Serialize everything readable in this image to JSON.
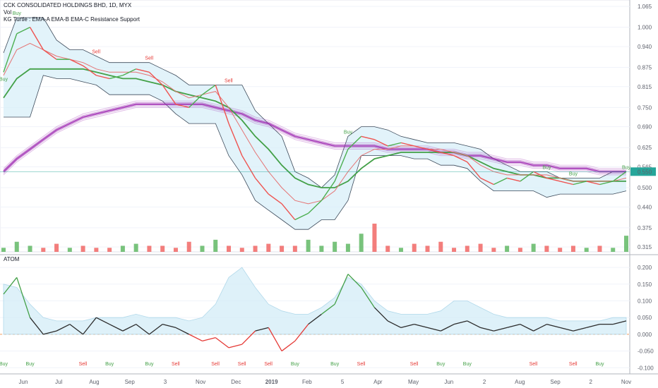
{
  "header": {
    "title": "CCK CONSOLIDATED HOLDINGS BHD, 1D, MYX",
    "vol_label": "Vol",
    "indicator": "KG Turtle : EMA-A EMA-B EMA-C Resistance Support"
  },
  "sub": {
    "label": "ATOM"
  },
  "colors": {
    "up": "#4caf50",
    "down": "#ef5350",
    "emaFast": "#e57373",
    "emaMid": "#43a047",
    "emaSlow": "#9c27b0",
    "channel": "#3c4a5a",
    "channelFill": "#d6eef8",
    "price": "#26a69a",
    "atomUp": "#43a047",
    "atomDown": "#e53935",
    "atomNeutral": "#2b2b2b"
  },
  "chart_data": [
    {
      "type": "line",
      "title": "CCK CONSOLIDATED HOLDINGS BHD, 1D, MYX",
      "y_ticks": [
        "1.065",
        "1.000",
        "0.940",
        "0.875",
        "0.815",
        "0.750",
        "0.690",
        "0.625",
        "0.565",
        "0.500",
        "0.440",
        "0.375",
        "0.315"
      ],
      "ylim": [
        0.3,
        1.085
      ],
      "last_price": "0.550",
      "x_labels": [
        "Jun",
        "Jul",
        "Aug",
        "Sep",
        "3",
        "Nov",
        "Dec",
        "2019",
        "Feb",
        "5",
        "Apr",
        "May",
        "Jun",
        "2",
        "Aug",
        "Sep",
        "2",
        "Nov"
      ],
      "close": [
        0.86,
        0.98,
        1.0,
        0.93,
        0.9,
        0.9,
        0.88,
        0.85,
        0.84,
        0.85,
        0.87,
        0.86,
        0.82,
        0.76,
        0.75,
        0.79,
        0.82,
        0.7,
        0.6,
        0.53,
        0.48,
        0.45,
        0.4,
        0.42,
        0.46,
        0.52,
        0.62,
        0.66,
        0.65,
        0.63,
        0.64,
        0.63,
        0.62,
        0.61,
        0.6,
        0.58,
        0.53,
        0.51,
        0.53,
        0.52,
        0.55,
        0.53,
        0.52,
        0.51,
        0.52,
        0.51,
        0.52,
        0.55
      ],
      "ema_fast": [
        0.85,
        0.93,
        0.95,
        0.93,
        0.91,
        0.9,
        0.89,
        0.87,
        0.86,
        0.86,
        0.86,
        0.85,
        0.83,
        0.8,
        0.78,
        0.79,
        0.8,
        0.75,
        0.68,
        0.61,
        0.55,
        0.5,
        0.46,
        0.45,
        0.46,
        0.49,
        0.55,
        0.6,
        0.62,
        0.62,
        0.63,
        0.63,
        0.62,
        0.62,
        0.61,
        0.6,
        0.57,
        0.55,
        0.54,
        0.54,
        0.54,
        0.54,
        0.53,
        0.52,
        0.52,
        0.52,
        0.52,
        0.53
      ],
      "ema_mid": [
        0.78,
        0.84,
        0.87,
        0.87,
        0.87,
        0.87,
        0.87,
        0.86,
        0.85,
        0.84,
        0.84,
        0.83,
        0.82,
        0.8,
        0.79,
        0.78,
        0.77,
        0.75,
        0.71,
        0.66,
        0.62,
        0.57,
        0.53,
        0.51,
        0.5,
        0.5,
        0.52,
        0.56,
        0.59,
        0.6,
        0.61,
        0.61,
        0.61,
        0.61,
        0.61,
        0.6,
        0.58,
        0.56,
        0.55,
        0.54,
        0.54,
        0.53,
        0.53,
        0.52,
        0.52,
        0.52,
        0.52,
        0.52
      ],
      "ema_slow": [
        0.55,
        0.59,
        0.62,
        0.65,
        0.68,
        0.7,
        0.72,
        0.73,
        0.74,
        0.75,
        0.76,
        0.76,
        0.76,
        0.76,
        0.76,
        0.76,
        0.75,
        0.74,
        0.73,
        0.71,
        0.7,
        0.68,
        0.66,
        0.65,
        0.64,
        0.63,
        0.63,
        0.63,
        0.63,
        0.62,
        0.62,
        0.62,
        0.62,
        0.61,
        0.61,
        0.6,
        0.6,
        0.59,
        0.58,
        0.58,
        0.57,
        0.57,
        0.56,
        0.56,
        0.56,
        0.55,
        0.55,
        0.55
      ],
      "upper": [
        0.92,
        1.03,
        1.03,
        1.03,
        0.96,
        0.93,
        0.93,
        0.91,
        0.89,
        0.89,
        0.89,
        0.89,
        0.87,
        0.85,
        0.82,
        0.82,
        0.82,
        0.82,
        0.82,
        0.74,
        0.7,
        0.66,
        0.55,
        0.53,
        0.5,
        0.54,
        0.66,
        0.69,
        0.69,
        0.68,
        0.66,
        0.65,
        0.64,
        0.64,
        0.64,
        0.63,
        0.62,
        0.59,
        0.57,
        0.55,
        0.55,
        0.55,
        0.53,
        0.53,
        0.53,
        0.53,
        0.55,
        0.55
      ],
      "lower": [
        0.72,
        0.72,
        0.72,
        0.85,
        0.84,
        0.84,
        0.83,
        0.82,
        0.79,
        0.79,
        0.79,
        0.79,
        0.77,
        0.73,
        0.7,
        0.7,
        0.7,
        0.6,
        0.54,
        0.46,
        0.43,
        0.4,
        0.37,
        0.37,
        0.4,
        0.4,
        0.46,
        0.6,
        0.6,
        0.6,
        0.6,
        0.59,
        0.59,
        0.57,
        0.57,
        0.56,
        0.52,
        0.49,
        0.49,
        0.49,
        0.49,
        0.47,
        0.48,
        0.48,
        0.48,
        0.48,
        0.48,
        0.49
      ],
      "volume": [
        2,
        5,
        3,
        2,
        4,
        2,
        3,
        2,
        2,
        3,
        4,
        3,
        3,
        2,
        5,
        3,
        6,
        3,
        2,
        3,
        4,
        3,
        3,
        6,
        3,
        5,
        4,
        9,
        14,
        3,
        2,
        4,
        3,
        5,
        2,
        3,
        4,
        2,
        3,
        2,
        4,
        3,
        2,
        3,
        2,
        3,
        2,
        8
      ],
      "signals": [
        {
          "i": 0,
          "label": "Buy",
          "pos": "low"
        },
        {
          "i": 1,
          "label": "Buy",
          "pos": "high"
        },
        {
          "i": 7,
          "label": "Sell",
          "pos": "high"
        },
        {
          "i": 11,
          "label": "Sell",
          "pos": "high"
        },
        {
          "i": 17,
          "label": "Sell",
          "pos": "high"
        },
        {
          "i": 26,
          "label": "Buy",
          "pos": "high"
        },
        {
          "i": 41,
          "label": "Buy",
          "pos": "high"
        },
        {
          "i": 43,
          "label": "Buy",
          "pos": "high"
        },
        {
          "i": 47,
          "label": "Buy",
          "pos": "high"
        }
      ]
    },
    {
      "type": "area",
      "title": "ATOM",
      "y_ticks": [
        "0.200",
        "0.150",
        "0.100",
        "0.050",
        "0.000",
        "-0.050",
        "-0.100"
      ],
      "ylim": [
        -0.11,
        0.215
      ],
      "atom": [
        0.12,
        0.17,
        0.05,
        0.0,
        0.01,
        0.03,
        0.0,
        0.05,
        0.03,
        0.01,
        0.03,
        0.0,
        0.03,
        0.02,
        0.0,
        -0.02,
        -0.01,
        -0.04,
        -0.03,
        0.01,
        0.02,
        -0.05,
        -0.02,
        0.03,
        0.06,
        0.09,
        0.18,
        0.14,
        0.08,
        0.04,
        0.02,
        0.03,
        0.02,
        0.01,
        0.03,
        0.04,
        0.02,
        0.01,
        0.02,
        0.03,
        0.01,
        0.03,
        0.02,
        0.01,
        0.02,
        0.03,
        0.03,
        0.04
      ],
      "envelope": [
        0.15,
        0.14,
        0.09,
        0.05,
        0.04,
        0.04,
        0.04,
        0.05,
        0.05,
        0.05,
        0.06,
        0.05,
        0.05,
        0.05,
        0.04,
        0.05,
        0.09,
        0.17,
        0.2,
        0.14,
        0.09,
        0.07,
        0.06,
        0.06,
        0.08,
        0.11,
        0.17,
        0.15,
        0.1,
        0.07,
        0.06,
        0.06,
        0.06,
        0.07,
        0.1,
        0.1,
        0.08,
        0.06,
        0.05,
        0.05,
        0.05,
        0.05,
        0.04,
        0.04,
        0.04,
        0.04,
        0.05,
        0.05
      ],
      "signals": [
        {
          "i": 0,
          "label": "Buy"
        },
        {
          "i": 2,
          "label": "Buy"
        },
        {
          "i": 6,
          "label": "Sell"
        },
        {
          "i": 8,
          "label": "Buy"
        },
        {
          "i": 11,
          "label": "Buy"
        },
        {
          "i": 13,
          "label": "Sell"
        },
        {
          "i": 16,
          "label": "Sell"
        },
        {
          "i": 18,
          "label": "Sell"
        },
        {
          "i": 20,
          "label": "Sell"
        },
        {
          "i": 22,
          "label": "Buy"
        },
        {
          "i": 25,
          "label": "Buy"
        },
        {
          "i": 27,
          "label": "Sell"
        },
        {
          "i": 31,
          "label": "Sell"
        },
        {
          "i": 33,
          "label": "Buy"
        },
        {
          "i": 35,
          "label": "Buy"
        },
        {
          "i": 40,
          "label": "Sell"
        },
        {
          "i": 43,
          "label": "Sell"
        },
        {
          "i": 45,
          "label": "Buy"
        }
      ]
    }
  ]
}
